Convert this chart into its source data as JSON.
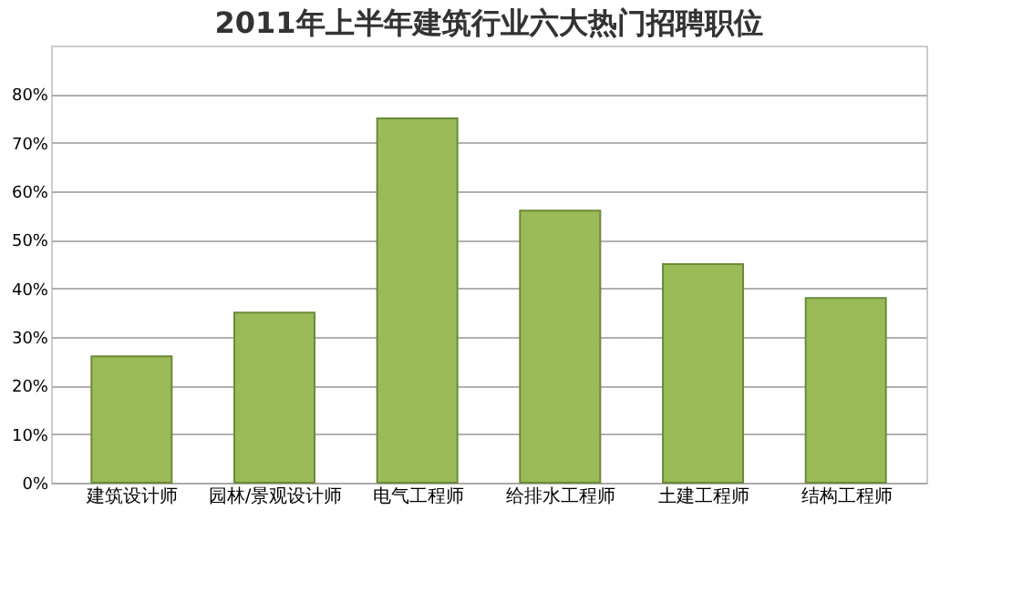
{
  "chart_data": {
    "type": "bar",
    "title": "2011年上半年建筑行业六大热门招聘职位",
    "categories": [
      "建筑设计师",
      "园林/景观设计师",
      "电气工程师",
      "给排水工程师",
      "土建工程师",
      "结构工程师"
    ],
    "values": [
      26,
      35,
      75,
      56,
      45,
      38
    ],
    "color": "#9bbb59",
    "ylim": [
      0,
      90
    ],
    "yticks": [
      {
        "value": 0,
        "label": "0%"
      },
      {
        "value": 10,
        "label": "10%"
      },
      {
        "value": 20,
        "label": "20%"
      },
      {
        "value": 30,
        "label": "30%"
      },
      {
        "value": 40,
        "label": "40%"
      },
      {
        "value": 50,
        "label": "50%"
      },
      {
        "value": 60,
        "label": "60%"
      },
      {
        "value": 70,
        "label": "70%"
      },
      {
        "value": 80,
        "label": "80%"
      }
    ],
    "grid": "y"
  }
}
